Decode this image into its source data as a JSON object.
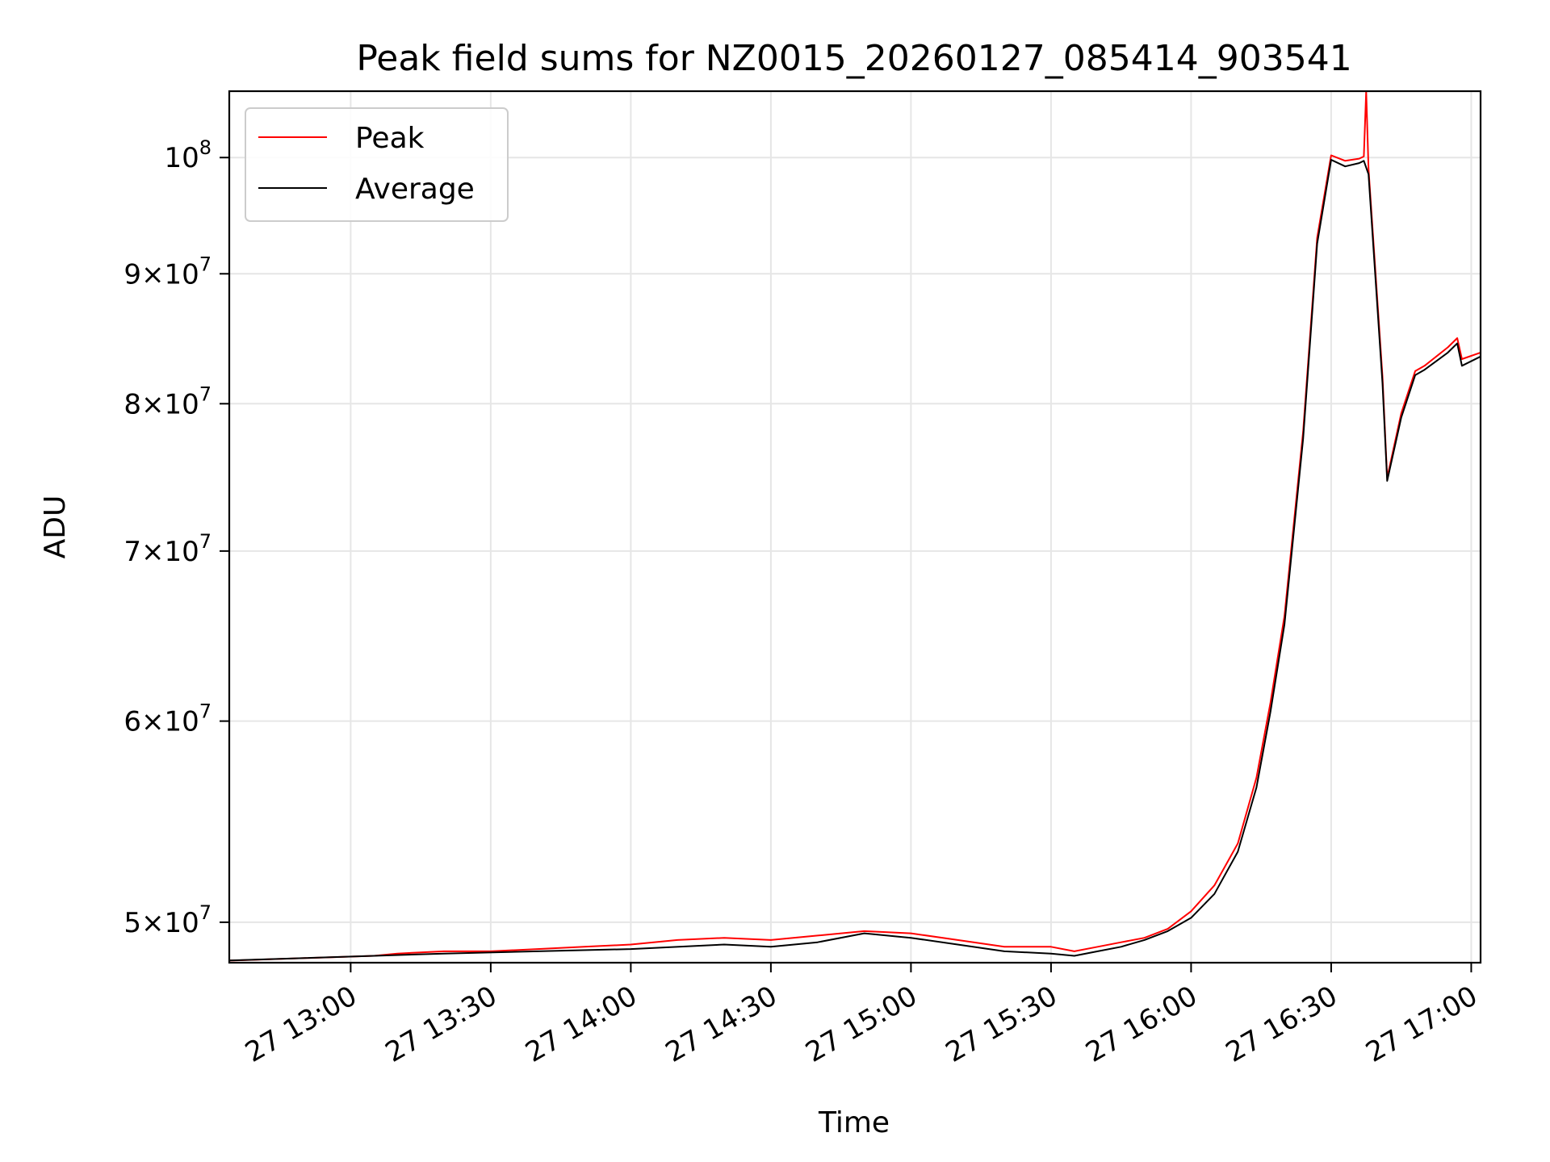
{
  "chart_data": {
    "type": "line",
    "title": "Peak field sums for NZ0015_20260127_085414_903541",
    "xlabel": "Time",
    "ylabel": "ADU",
    "yscale": "log",
    "grid": true,
    "legend_position": "top-left",
    "x_range": [
      "2026-01-27 12:34",
      "2026-01-27 17:02"
    ],
    "ylim": [
      48200000,
      106200000
    ],
    "x_ticks": [
      {
        "value": "2026-01-27 13:00",
        "label": "27 13:00"
      },
      {
        "value": "2026-01-27 13:30",
        "label": "27 13:30"
      },
      {
        "value": "2026-01-27 14:00",
        "label": "27 14:00"
      },
      {
        "value": "2026-01-27 14:30",
        "label": "27 14:30"
      },
      {
        "value": "2026-01-27 15:00",
        "label": "27 15:00"
      },
      {
        "value": "2026-01-27 15:30",
        "label": "27 15:30"
      },
      {
        "value": "2026-01-27 16:00",
        "label": "27 16:00"
      },
      {
        "value": "2026-01-27 16:30",
        "label": "27 16:30"
      },
      {
        "value": "2026-01-27 17:00",
        "label": "27 17:00"
      }
    ],
    "y_ticks": [
      {
        "value": 50000000,
        "mantissa": "5",
        "exp": "7"
      },
      {
        "value": 60000000,
        "mantissa": "6",
        "exp": "7"
      },
      {
        "value": 70000000,
        "mantissa": "7",
        "exp": "7"
      },
      {
        "value": 80000000,
        "mantissa": "8",
        "exp": "7"
      },
      {
        "value": 90000000,
        "mantissa": "9",
        "exp": "7"
      },
      {
        "value": 100000000,
        "mantissa": "",
        "exp": "8"
      }
    ],
    "series": [
      {
        "name": "Peak",
        "color": "#ff0000",
        "x": [
          "2026-01-27 12:34",
          "2026-01-27 12:35",
          "2026-01-27 13:05",
          "2026-01-27 13:10",
          "2026-01-27 13:20",
          "2026-01-27 13:30",
          "2026-01-27 13:40",
          "2026-01-27 13:50",
          "2026-01-27 14:00",
          "2026-01-27 14:10",
          "2026-01-27 14:20",
          "2026-01-27 14:30",
          "2026-01-27 14:40",
          "2026-01-27 14:50",
          "2026-01-27 15:00",
          "2026-01-27 15:10",
          "2026-01-27 15:20",
          "2026-01-27 15:30",
          "2026-01-27 15:35",
          "2026-01-27 15:40",
          "2026-01-27 15:45",
          "2026-01-27 15:50",
          "2026-01-27 15:55",
          "2026-01-27 16:00",
          "2026-01-27 16:05",
          "2026-01-27 16:10",
          "2026-01-27 16:14",
          "2026-01-27 16:17",
          "2026-01-27 16:20",
          "2026-01-27 16:24",
          "2026-01-27 16:27",
          "2026-01-27 16:30",
          "2026-01-27 16:33",
          "2026-01-27 16:36",
          "2026-01-27 16:37",
          "2026-01-27 16:37.5",
          "2026-01-27 16:38",
          "2026-01-27 16:41",
          "2026-01-27 16:42",
          "2026-01-27 16:45",
          "2026-01-27 16:48",
          "2026-01-27 16:50",
          "2026-01-27 16:55",
          "2026-01-27 16:57",
          "2026-01-27 16:58",
          "2026-01-27 17:02"
        ],
        "values": [
          48300000,
          48300000,
          48500000,
          48600000,
          48700000,
          48700000,
          48800000,
          48900000,
          49000000,
          49200000,
          49300000,
          49200000,
          49400000,
          49600000,
          49500000,
          49200000,
          48900000,
          48900000,
          48700000,
          48900000,
          49100000,
          49300000,
          49700000,
          50500000,
          51700000,
          53700000,
          57000000,
          61000000,
          66000000,
          78000000,
          93000000,
          100200000,
          99700000,
          99900000,
          100100000,
          106200000,
          99000000,
          82000000,
          74800000,
          79300000,
          82400000,
          82800000,
          84200000,
          84900000,
          83300000,
          83800000
        ]
      },
      {
        "name": "Average",
        "color": "#000000",
        "x": [
          "2026-01-27 12:34",
          "2026-01-27 13:05",
          "2026-01-27 13:20",
          "2026-01-27 13:40",
          "2026-01-27 14:00",
          "2026-01-27 14:20",
          "2026-01-27 14:30",
          "2026-01-27 14:40",
          "2026-01-27 14:50",
          "2026-01-27 15:00",
          "2026-01-27 15:10",
          "2026-01-27 15:20",
          "2026-01-27 15:30",
          "2026-01-27 15:35",
          "2026-01-27 15:40",
          "2026-01-27 15:45",
          "2026-01-27 15:50",
          "2026-01-27 15:55",
          "2026-01-27 16:00",
          "2026-01-27 16:05",
          "2026-01-27 16:10",
          "2026-01-27 16:14",
          "2026-01-27 16:17",
          "2026-01-27 16:20",
          "2026-01-27 16:24",
          "2026-01-27 16:27",
          "2026-01-27 16:30",
          "2026-01-27 16:33",
          "2026-01-27 16:36",
          "2026-01-27 16:37",
          "2026-01-27 16:38",
          "2026-01-27 16:41",
          "2026-01-27 16:42",
          "2026-01-27 16:45",
          "2026-01-27 16:48",
          "2026-01-27 16:50",
          "2026-01-27 16:55",
          "2026-01-27 16:57",
          "2026-01-27 16:58",
          "2026-01-27 17:02"
        ],
        "values": [
          48300000,
          48500000,
          48600000,
          48700000,
          48800000,
          49000000,
          48900000,
          49100000,
          49500000,
          49300000,
          49000000,
          48700000,
          48600000,
          48500000,
          48700000,
          48900000,
          49200000,
          49600000,
          50200000,
          51300000,
          53300000,
          56500000,
          60500000,
          65500000,
          77500000,
          92500000,
          99800000,
          99200000,
          99500000,
          99700000,
          98500000,
          81500000,
          74600000,
          79000000,
          82100000,
          82500000,
          83800000,
          84500000,
          82800000,
          83500000
        ]
      }
    ]
  }
}
